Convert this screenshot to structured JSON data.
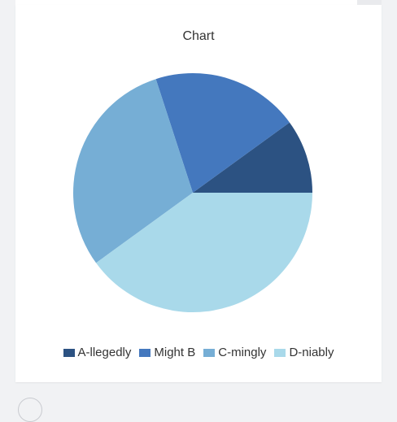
{
  "chart_data": {
    "type": "pie",
    "title": "Chart",
    "categories": [
      "A-llegedly",
      "Might B",
      "C-mingly",
      "D-niably"
    ],
    "values": [
      10,
      20,
      30,
      40
    ],
    "colors": [
      "#2c5282",
      "#4478be",
      "#76aed5",
      "#a9d9ea"
    ],
    "legend": "bottom",
    "start": "3 o'clock, counter-clockwise"
  }
}
